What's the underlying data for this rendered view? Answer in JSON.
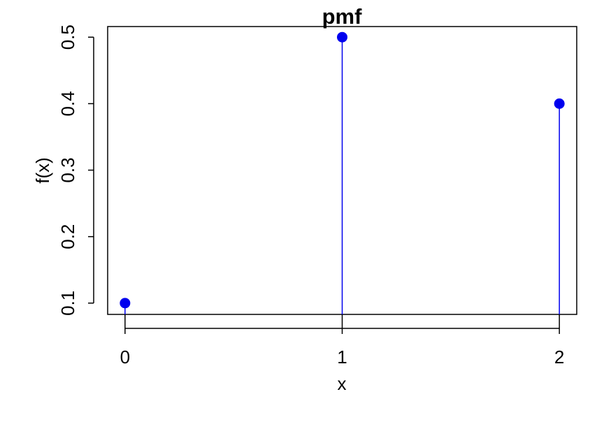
{
  "chart_data": {
    "type": "scatter",
    "title": "pmf",
    "xlabel": "x",
    "ylabel": "f(x)",
    "xlim": [
      -0.08,
      2.08
    ],
    "ylim": [
      0.083,
      0.516
    ],
    "x_ticks": [
      0,
      1,
      2
    ],
    "x_tick_labels": [
      "0",
      "1",
      "2"
    ],
    "y_ticks": [
      0.1,
      0.2,
      0.3,
      0.4,
      0.5
    ],
    "y_tick_labels": [
      "0.1",
      "0.2",
      "0.3",
      "0.4",
      "0.5"
    ],
    "grid": false,
    "series": [
      {
        "x": [
          0,
          1,
          2
        ],
        "values": [
          0.1,
          0.5,
          0.4
        ],
        "style": "stem",
        "color": "#0000ee"
      }
    ]
  }
}
